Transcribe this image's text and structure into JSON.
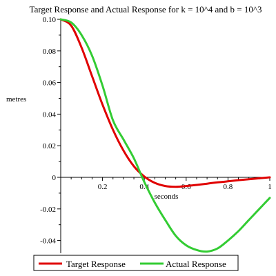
{
  "chart_data": {
    "type": "line",
    "title": "Target Response and Actual Response for k = 10^4 and b = 10^3",
    "xlabel": "seconds",
    "ylabel": "metres",
    "xlim": [
      0,
      1
    ],
    "ylim": [
      -0.048,
      0.1
    ],
    "x_ticks": [
      0.2,
      0.4,
      0.6,
      0.8,
      1
    ],
    "x_tick_labels": [
      "0.2",
      "0.4",
      "0.6",
      "0.8",
      "1"
    ],
    "y_ticks": [
      0.1,
      0.08,
      0.06,
      0.04,
      0.02,
      0,
      -0.02,
      -0.04
    ],
    "y_tick_labels": [
      "0.10",
      "0.08",
      "0.06",
      "0.04",
      "0.02",
      "0",
      "-0.02",
      "-0.04"
    ],
    "grid": false,
    "legend_position": "bottom",
    "x": [
      0,
      0.05,
      0.1,
      0.15,
      0.2,
      0.25,
      0.3,
      0.35,
      0.4,
      0.45,
      0.5,
      0.55,
      0.6,
      0.65,
      0.7,
      0.75,
      0.8,
      0.85,
      0.9,
      0.95,
      1.0
    ],
    "series": [
      {
        "name": "Target Response",
        "color": "#e00000",
        "values": [
          0.1,
          0.096,
          0.082,
          0.064,
          0.046,
          0.03,
          0.017,
          0.007,
          0.0005,
          -0.0035,
          -0.0055,
          -0.006,
          -0.0055,
          -0.0048,
          -0.004,
          -0.0032,
          -0.0025,
          -0.0018,
          -0.0012,
          -0.0006,
          0.0
        ]
      },
      {
        "name": "Actual Response",
        "color": "#33cc33",
        "values": [
          0.1,
          0.098,
          0.09,
          0.077,
          0.058,
          0.036,
          0.024,
          0.012,
          -0.003,
          -0.016,
          -0.027,
          -0.037,
          -0.043,
          -0.046,
          -0.047,
          -0.045,
          -0.04,
          -0.034,
          -0.027,
          -0.02,
          -0.013
        ]
      }
    ]
  }
}
